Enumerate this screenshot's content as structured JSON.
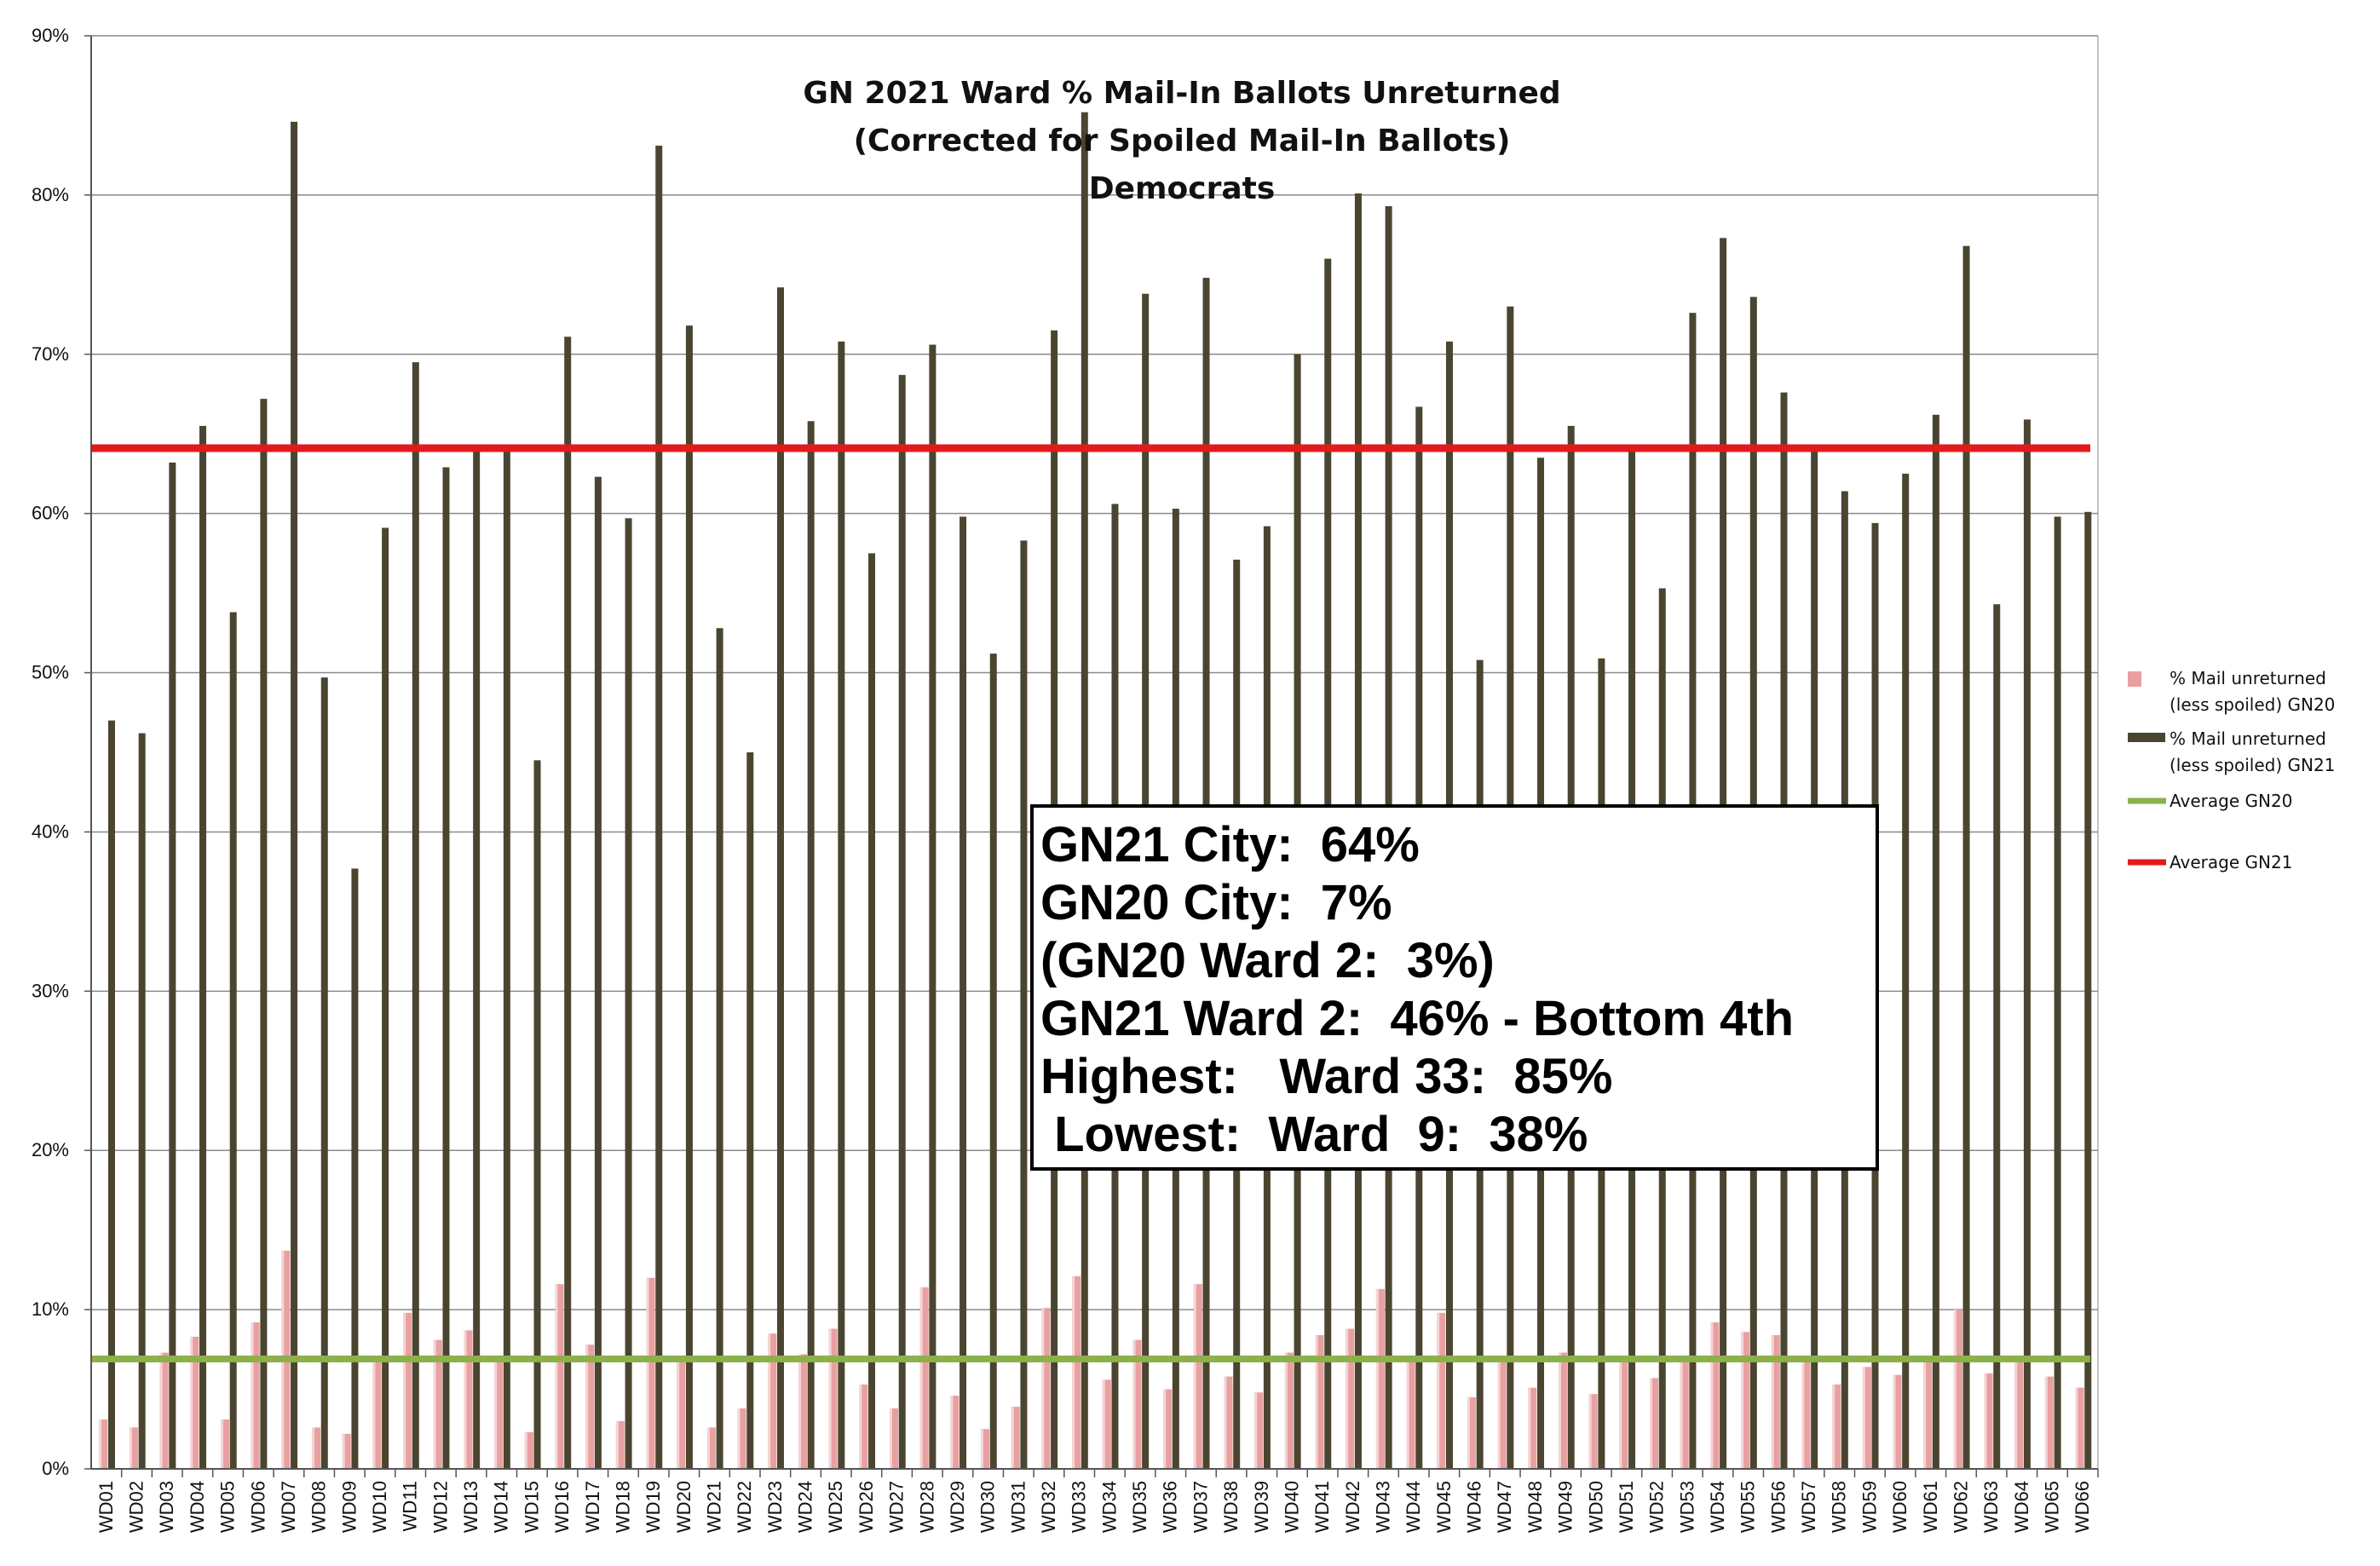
{
  "chart_data": {
    "type": "bar",
    "title_lines": [
      "GN 2021 Ward % Mail-In Ballots Unreturned",
      "(Corrected for Spoiled Mail-In Ballots)",
      "Democrats"
    ],
    "xlabel": "",
    "ylabel": "",
    "ylim": [
      0,
      90
    ],
    "y_ticks": [
      "0%",
      "10%",
      "20%",
      "30%",
      "40%",
      "50%",
      "60%",
      "70%",
      "80%",
      "90%"
    ],
    "grid": true,
    "legend_position": "right",
    "categories": [
      "WD01",
      "WD02",
      "WD03",
      "WD04",
      "WD05",
      "WD06",
      "WD07",
      "WD08",
      "WD09",
      "WD10",
      "WD11",
      "WD12",
      "WD13",
      "WD14",
      "WD15",
      "WD16",
      "WD17",
      "WD18",
      "WD19",
      "WD20",
      "WD21",
      "WD22",
      "WD23",
      "WD24",
      "WD25",
      "WD26",
      "WD27",
      "WD28",
      "WD29",
      "WD30",
      "WD31",
      "WD32",
      "WD33",
      "WD34",
      "WD35",
      "WD36",
      "WD37",
      "WD38",
      "WD39",
      "WD40",
      "WD41",
      "WD42",
      "WD43",
      "WD44",
      "WD45",
      "WD46",
      "WD47",
      "WD48",
      "WD49",
      "WD50",
      "WD51",
      "WD52",
      "WD53",
      "WD54",
      "WD55",
      "WD56",
      "WD57",
      "WD58",
      "WD59",
      "WD60",
      "WD61",
      "WD62",
      "WD63",
      "WD64",
      "WD65",
      "WD66"
    ],
    "series": [
      {
        "name": "% Mail unreturned (less spoiled) GN20",
        "legend_lines": [
          "% Mail unreturned",
          "(less spoiled) GN20"
        ],
        "color": "#e8a0a0",
        "values": [
          3.1,
          2.6,
          7.3,
          8.3,
          3.1,
          9.2,
          13.7,
          2.6,
          2.2,
          6.9,
          9.8,
          8.1,
          8.7,
          7.0,
          2.3,
          11.6,
          7.8,
          3.0,
          12.0,
          7.0,
          2.6,
          3.8,
          8.5,
          7.2,
          8.8,
          5.3,
          3.8,
          11.4,
          4.6,
          2.5,
          3.9,
          10.1,
          12.1,
          5.6,
          8.1,
          5.0,
          11.6,
          5.8,
          4.8,
          7.3,
          8.4,
          8.8,
          11.3,
          6.9,
          9.8,
          4.5,
          6.7,
          5.1,
          7.3,
          4.7,
          7.0,
          5.7,
          7.1,
          9.2,
          8.6,
          8.4,
          6.8,
          5.3,
          6.4,
          5.9,
          7.0,
          10.0,
          6.0,
          7.0,
          5.8,
          5.1
        ]
      },
      {
        "name": "% Mail unreturned (less spoiled) GN21",
        "legend_lines": [
          "% Mail unreturned",
          "(less spoiled) GN21"
        ],
        "color": "#4a4530",
        "values": [
          47.0,
          46.2,
          63.2,
          65.5,
          53.8,
          67.2,
          84.6,
          49.7,
          37.7,
          59.1,
          69.5,
          62.9,
          64.3,
          64.0,
          44.5,
          71.1,
          62.3,
          59.7,
          83.1,
          71.8,
          52.8,
          45.0,
          74.2,
          65.8,
          70.8,
          57.5,
          68.7,
          70.6,
          59.8,
          51.2,
          58.3,
          71.5,
          85.2,
          60.6,
          73.8,
          60.3,
          74.8,
          57.1,
          59.2,
          70.0,
          76.0,
          80.1,
          79.3,
          66.7,
          70.8,
          50.8,
          73.0,
          63.5,
          65.5,
          50.9,
          64.0,
          55.3,
          72.6,
          77.3,
          73.6,
          67.6,
          64.0,
          61.4,
          59.4,
          62.5,
          66.2,
          76.8,
          54.3,
          65.9,
          59.8,
          60.1
        ]
      }
    ],
    "reference_lines": [
      {
        "name": "Average GN20",
        "value": 6.9,
        "color": "#8db04a"
      },
      {
        "name": "Average GN21",
        "value": 64.1,
        "color": "#e31a1c"
      }
    ]
  },
  "annotation": {
    "lines": [
      "GN21 City:  64%",
      "GN20 City:  7%",
      "(GN20 Ward 2:  3%)",
      "GN21 Ward 2:  46% - Bottom 4th",
      "Highest:   Ward 33:  85%",
      " Lowest:  Ward  9:  38%"
    ]
  }
}
